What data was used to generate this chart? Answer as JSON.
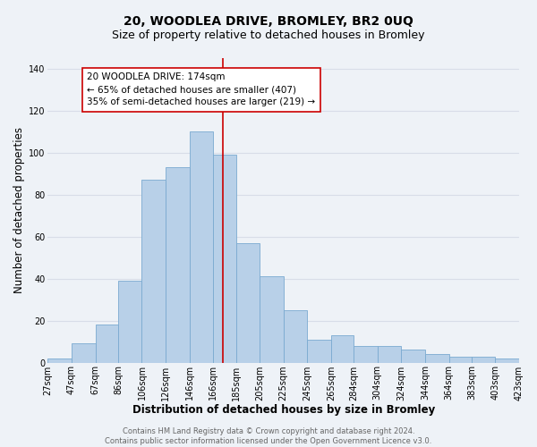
{
  "title": "20, WOODLEA DRIVE, BROMLEY, BR2 0UQ",
  "subtitle": "Size of property relative to detached houses in Bromley",
  "xlabel": "Distribution of detached houses by size in Bromley",
  "ylabel": "Number of detached properties",
  "footer_line1": "Contains HM Land Registry data © Crown copyright and database right 2024.",
  "footer_line2": "Contains public sector information licensed under the Open Government Licence v3.0.",
  "categories": [
    "27sqm",
    "47sqm",
    "67sqm",
    "86sqm",
    "106sqm",
    "126sqm",
    "146sqm",
    "166sqm",
    "185sqm",
    "205sqm",
    "225sqm",
    "245sqm",
    "265sqm",
    "284sqm",
    "304sqm",
    "324sqm",
    "344sqm",
    "364sqm",
    "383sqm",
    "403sqm",
    "423sqm"
  ],
  "values": [
    2,
    9,
    18,
    39,
    87,
    93,
    110,
    99,
    57,
    41,
    25,
    11,
    13,
    8,
    8,
    6,
    4,
    3,
    3,
    2
  ],
  "bar_color": "#b8d0e8",
  "bar_edge_color": "#7aaad0",
  "property_line_x": 174,
  "property_line_color": "#cc0000",
  "annotation_text": "20 WOODLEA DRIVE: 174sqm\n← 65% of detached houses are smaller (407)\n35% of semi-detached houses are larger (219) →",
  "annotation_box_color": "#ffffff",
  "annotation_box_edge": "#cc0000",
  "ylim": [
    0,
    145
  ],
  "bg_color": "#eef2f7",
  "grid_color": "#d8dde8",
  "title_fontsize": 10,
  "subtitle_fontsize": 9,
  "axis_label_fontsize": 8.5,
  "tick_fontsize": 7,
  "annotation_fontsize": 7.5,
  "footer_fontsize": 6
}
